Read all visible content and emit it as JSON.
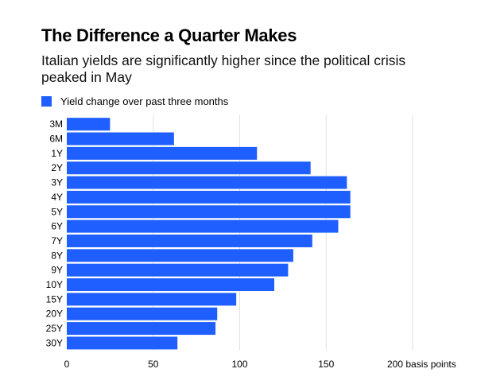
{
  "title": "The Difference a Quarter Makes",
  "subtitle": "Italian yields are significantly higher since the political crisis peaked in May",
  "colors": {
    "bar": "#1f5fff",
    "grid": "#e0e0e0"
  },
  "chart_data": {
    "type": "bar",
    "orientation": "horizontal",
    "legend": {
      "label": "Yield change over past three months",
      "placement": "top-left"
    },
    "categories": [
      "3M",
      "6M",
      "1Y",
      "2Y",
      "3Y",
      "4Y",
      "5Y",
      "6Y",
      "7Y",
      "8Y",
      "9Y",
      "10Y",
      "15Y",
      "20Y",
      "25Y",
      "30Y"
    ],
    "series": [
      {
        "name": "Yield change over past three months",
        "values": [
          25,
          62,
          110,
          141,
          162,
          164,
          164,
          157,
          142,
          131,
          128,
          120,
          98,
          87,
          86,
          64
        ]
      }
    ],
    "xlim": [
      0,
      200
    ],
    "xticks": [
      "0",
      "50",
      "100",
      "150",
      "200 basis points"
    ],
    "grid": true
  }
}
